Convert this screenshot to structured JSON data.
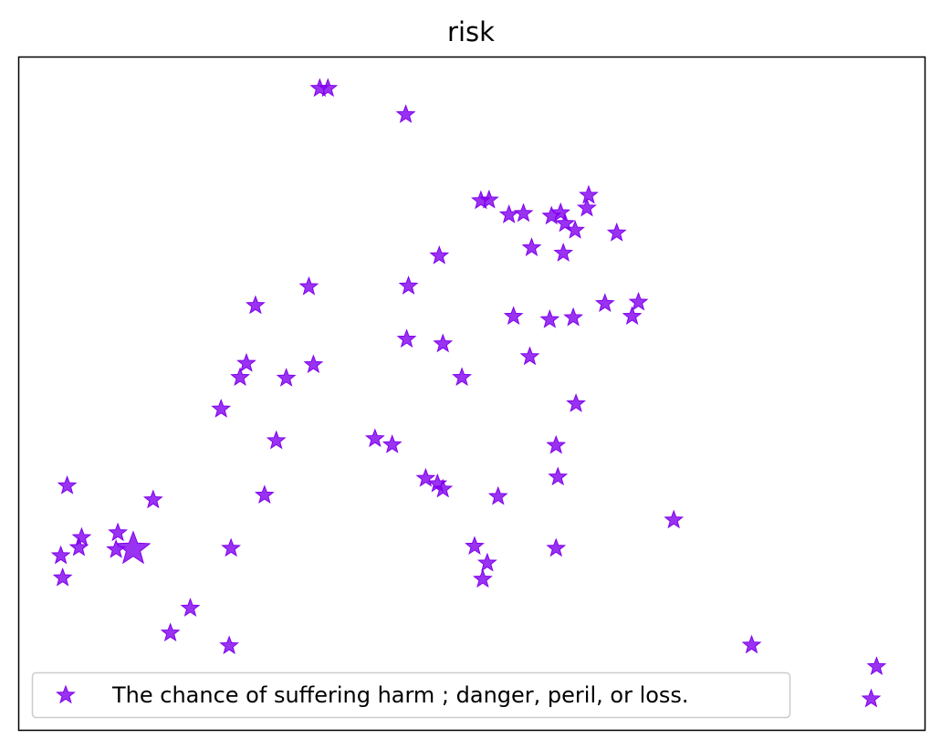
{
  "chart_data": {
    "type": "scatter",
    "title": "risk",
    "xlabel": "",
    "ylabel": "",
    "xlim": [
      0,
      100
    ],
    "ylim": [
      0,
      100
    ],
    "grid": false,
    "axis_ticks": false,
    "legend": {
      "placement": "lower-left",
      "labels": [
        "The chance of suffering harm ; danger, peril, or loss."
      ]
    },
    "marker": "star",
    "series": [
      {
        "name": "The chance of suffering harm ; danger, peril, or loss.",
        "color": "#8000ee",
        "points": [
          {
            "x": 33.2,
            "y": 95.4
          },
          {
            "x": 34.1,
            "y": 95.4
          },
          {
            "x": 42.7,
            "y": 91.5
          },
          {
            "x": 51.0,
            "y": 78.7
          },
          {
            "x": 51.9,
            "y": 78.8
          },
          {
            "x": 54.1,
            "y": 76.6
          },
          {
            "x": 55.7,
            "y": 76.8
          },
          {
            "x": 58.8,
            "y": 76.4
          },
          {
            "x": 59.8,
            "y": 76.9
          },
          {
            "x": 62.9,
            "y": 79.5
          },
          {
            "x": 62.7,
            "y": 77.6
          },
          {
            "x": 60.3,
            "y": 75.3
          },
          {
            "x": 61.4,
            "y": 74.3
          },
          {
            "x": 66.0,
            "y": 73.9
          },
          {
            "x": 56.6,
            "y": 71.7
          },
          {
            "x": 60.1,
            "y": 70.9
          },
          {
            "x": 46.4,
            "y": 70.5
          },
          {
            "x": 32.0,
            "y": 65.9
          },
          {
            "x": 43.0,
            "y": 66.0
          },
          {
            "x": 26.1,
            "y": 63.1
          },
          {
            "x": 64.7,
            "y": 63.4
          },
          {
            "x": 68.4,
            "y": 63.6
          },
          {
            "x": 54.6,
            "y": 61.5
          },
          {
            "x": 58.6,
            "y": 61.0
          },
          {
            "x": 61.2,
            "y": 61.3
          },
          {
            "x": 67.7,
            "y": 61.5
          },
          {
            "x": 42.8,
            "y": 58.1
          },
          {
            "x": 46.8,
            "y": 57.4
          },
          {
            "x": 25.1,
            "y": 54.5
          },
          {
            "x": 32.5,
            "y": 54.3
          },
          {
            "x": 56.4,
            "y": 55.5
          },
          {
            "x": 24.4,
            "y": 52.4
          },
          {
            "x": 29.5,
            "y": 52.3
          },
          {
            "x": 48.9,
            "y": 52.4
          },
          {
            "x": 61.5,
            "y": 48.5
          },
          {
            "x": 22.3,
            "y": 47.7
          },
          {
            "x": 28.4,
            "y": 43.0
          },
          {
            "x": 39.3,
            "y": 43.3
          },
          {
            "x": 41.2,
            "y": 42.4
          },
          {
            "x": 59.3,
            "y": 42.3
          },
          {
            "x": 5.3,
            "y": 36.3
          },
          {
            "x": 44.9,
            "y": 37.4
          },
          {
            "x": 46.2,
            "y": 36.6
          },
          {
            "x": 46.8,
            "y": 35.8
          },
          {
            "x": 59.5,
            "y": 37.6
          },
          {
            "x": 27.1,
            "y": 34.9
          },
          {
            "x": 52.9,
            "y": 34.7
          },
          {
            "x": 14.8,
            "y": 34.2
          },
          {
            "x": 72.3,
            "y": 31.2
          },
          {
            "x": 10.9,
            "y": 29.3
          },
          {
            "x": 6.9,
            "y": 28.6
          },
          {
            "x": 6.6,
            "y": 27.1
          },
          {
            "x": 23.4,
            "y": 27.0
          },
          {
            "x": 50.3,
            "y": 27.3
          },
          {
            "x": 59.3,
            "y": 27.0
          },
          {
            "x": 10.7,
            "y": 26.8
          },
          {
            "x": 12.6,
            "y": 26.9,
            "size": "large"
          },
          {
            "x": 4.6,
            "y": 25.9
          },
          {
            "x": 51.7,
            "y": 24.8
          },
          {
            "x": 4.8,
            "y": 22.6
          },
          {
            "x": 51.2,
            "y": 22.4
          },
          {
            "x": 18.9,
            "y": 18.1
          },
          {
            "x": 16.7,
            "y": 14.4
          },
          {
            "x": 23.2,
            "y": 12.5
          },
          {
            "x": 80.9,
            "y": 12.6
          },
          {
            "x": 94.7,
            "y": 9.4
          },
          {
            "x": 94.1,
            "y": 4.6
          }
        ]
      }
    ]
  }
}
